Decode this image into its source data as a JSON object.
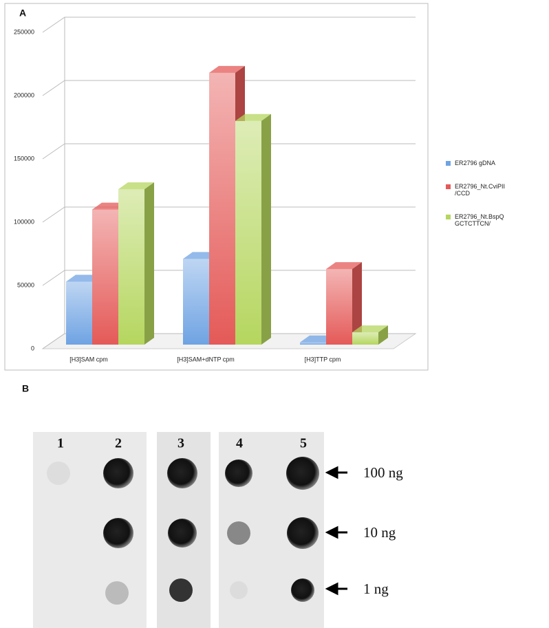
{
  "chart_data": {
    "type": "bar",
    "label": "A",
    "categories": [
      "[H3]SAM cpm",
      "[H3]SAM+dNTP cpm",
      "[H3]TTP cpm"
    ],
    "series": [
      {
        "name": "ER2796 gDNA",
        "color": "#6fa3e3",
        "values": [
          53000,
          71000,
          5000
        ]
      },
      {
        "name": "ER2796_Nt.CviPII  /CCD",
        "color": "#e45a58",
        "values": [
          110000,
          218000,
          63000
        ]
      },
      {
        "name": "ER2796_Nt.BspQ GCTCTTCN/",
        "color": "#b5d65f",
        "values": [
          126000,
          180000,
          13000
        ]
      }
    ],
    "ylim": [
      0,
      250000
    ],
    "yticks": [
      0,
      50000,
      100000,
      150000,
      200000,
      250000
    ],
    "grid": true,
    "legend": "right"
  },
  "blot": {
    "label": "B",
    "lanes": [
      "1",
      "2",
      "3",
      "4",
      "5"
    ],
    "amounts": [
      "100 ng",
      "10 ng",
      "1 ng"
    ]
  }
}
